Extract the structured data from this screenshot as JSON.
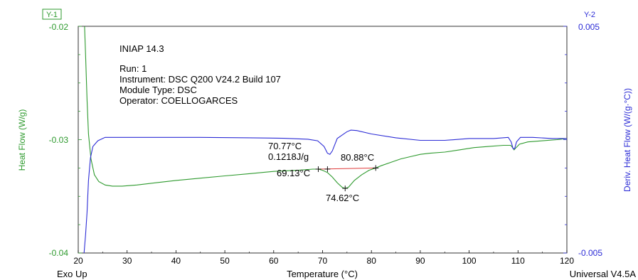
{
  "chart_data": {
    "type": "line",
    "header": {
      "sample": "INIAP 14.3",
      "run": "Run:  1",
      "instrument": "Instrument:  DSC Q200 V24.2 Build 107",
      "module": "Module Type:  DSC",
      "operator": "Operator:  COELLOGARCES"
    },
    "footer_left": "Exo Up",
    "footer_right": "Universal V4.5A",
    "x_axis": {
      "label": "Temperature (°C)",
      "range": [
        20,
        120
      ],
      "ticks": [
        20,
        30,
        40,
        50,
        60,
        70,
        80,
        90,
        100,
        110,
        120
      ]
    },
    "y1_axis": {
      "tag": "Y-1",
      "label": "Heat Flow (W/g)",
      "range": [
        -0.04,
        -0.02
      ],
      "tick_labels": [
        "-0.02",
        "-0.03",
        "-0.04"
      ],
      "color": "#2e9a2e"
    },
    "y2_axis": {
      "tag": "Y-2",
      "label": "Deriv. Heat Flow (W/(g·°C))",
      "range": [
        -0.005,
        0.005
      ],
      "tick_labels": [
        "0.005",
        "-0.005"
      ],
      "color": "#2c2cd6"
    },
    "series": [
      {
        "axis": "y1",
        "color": "#2e9a2e",
        "points": [
          [
            21.3,
            -0.02
          ],
          [
            21.5,
            -0.0225
          ],
          [
            21.8,
            -0.0265
          ],
          [
            22.1,
            -0.0295
          ],
          [
            22.6,
            -0.0317
          ],
          [
            23.3,
            -0.0331
          ],
          [
            24.2,
            -0.0337
          ],
          [
            25.5,
            -0.034
          ],
          [
            27,
            -0.0341
          ],
          [
            29,
            -0.0341
          ],
          [
            32,
            -0.034
          ],
          [
            36,
            -0.0338
          ],
          [
            40,
            -0.0336
          ],
          [
            45,
            -0.0334
          ],
          [
            50,
            -0.0332
          ],
          [
            55,
            -0.033
          ],
          [
            60,
            -0.0328
          ],
          [
            65,
            -0.0327
          ],
          [
            68,
            -0.0326
          ],
          [
            69.13,
            -0.0326
          ],
          [
            70,
            -0.0327
          ],
          [
            71,
            -0.0329
          ],
          [
            72,
            -0.0333
          ],
          [
            73,
            -0.0338
          ],
          [
            74,
            -0.0342
          ],
          [
            74.62,
            -0.0343
          ],
          [
            75.3,
            -0.0342
          ],
          [
            76.5,
            -0.0336
          ],
          [
            78,
            -0.0331
          ],
          [
            79.5,
            -0.0327
          ],
          [
            80.88,
            -0.0325
          ],
          [
            82,
            -0.0323
          ],
          [
            84,
            -0.032
          ],
          [
            86,
            -0.0317
          ],
          [
            88,
            -0.0315
          ],
          [
            90,
            -0.0313
          ],
          [
            92,
            -0.0312
          ],
          [
            95,
            -0.0311
          ],
          [
            98,
            -0.0309
          ],
          [
            101,
            -0.0307
          ],
          [
            104,
            -0.0306
          ],
          [
            107,
            -0.0305
          ],
          [
            108.5,
            -0.0305
          ],
          [
            108.9,
            -0.0307
          ],
          [
            109.2,
            -0.0309
          ],
          [
            109.6,
            -0.0307
          ],
          [
            110.3,
            -0.0304
          ],
          [
            112,
            -0.0302
          ],
          [
            115,
            -0.0301
          ],
          [
            118,
            -0.03
          ],
          [
            120,
            -0.0299
          ]
        ]
      },
      {
        "axis": "y2",
        "color": "#2c2cd6",
        "points": [
          [
            21.2,
            -0.005
          ],
          [
            21.5,
            -0.0042
          ],
          [
            21.8,
            -0.0032
          ],
          [
            22.1,
            -0.0018
          ],
          [
            22.5,
            -0.0008
          ],
          [
            23,
            -0.0003
          ],
          [
            24,
            -5e-05
          ],
          [
            25.5,
            0.0001
          ],
          [
            28,
            0.0001
          ],
          [
            35,
            0.0001
          ],
          [
            45,
            0.0001
          ],
          [
            55,
            8e-05
          ],
          [
            62,
            6e-05
          ],
          [
            67,
            2e-05
          ],
          [
            69,
            -5e-05
          ],
          [
            70.3,
            -0.0003
          ],
          [
            71,
            -0.0006
          ],
          [
            71.5,
            -0.00065
          ],
          [
            72,
            -0.0005
          ],
          [
            73,
            5e-05
          ],
          [
            74,
            0.0002
          ],
          [
            75,
            0.00035
          ],
          [
            75.8,
            0.00042
          ],
          [
            77,
            0.0004
          ],
          [
            80,
            0.00025
          ],
          [
            85,
            8e-05
          ],
          [
            90,
            -3e-05
          ],
          [
            95,
            -3e-05
          ],
          [
            100,
            5e-05
          ],
          [
            105,
            5e-05
          ],
          [
            108,
            0.0001
          ],
          [
            108.6,
            -0.0001
          ],
          [
            109,
            -0.0004
          ],
          [
            109.3,
            -0.0004
          ],
          [
            109.7,
            -0.0001
          ],
          [
            110.5,
            0.0001
          ],
          [
            113,
            0.0001
          ],
          [
            117,
            5e-05
          ],
          [
            120,
            5e-05
          ]
        ]
      }
    ],
    "baseline": {
      "color": "#e03c3c",
      "start": [
        69.13,
        -0.0326
      ],
      "end": [
        80.88,
        -0.0325
      ]
    },
    "annotations": [
      {
        "id": "onset",
        "lines": [
          "70.77°C",
          "0.1218J/g"
        ],
        "x": 70.77
      },
      {
        "id": "left",
        "lines": [
          "69.13°C"
        ],
        "x": 69.13
      },
      {
        "id": "right",
        "lines": [
          "80.88°C"
        ],
        "x": 80.88
      },
      {
        "id": "peak",
        "lines": [
          "74.62°C"
        ],
        "x": 74.62
      }
    ],
    "markers": [
      [
        69.13,
        -0.0326
      ],
      [
        71.0,
        -0.0326
      ],
      [
        74.62,
        -0.0343
      ],
      [
        80.88,
        -0.0325
      ]
    ]
  }
}
